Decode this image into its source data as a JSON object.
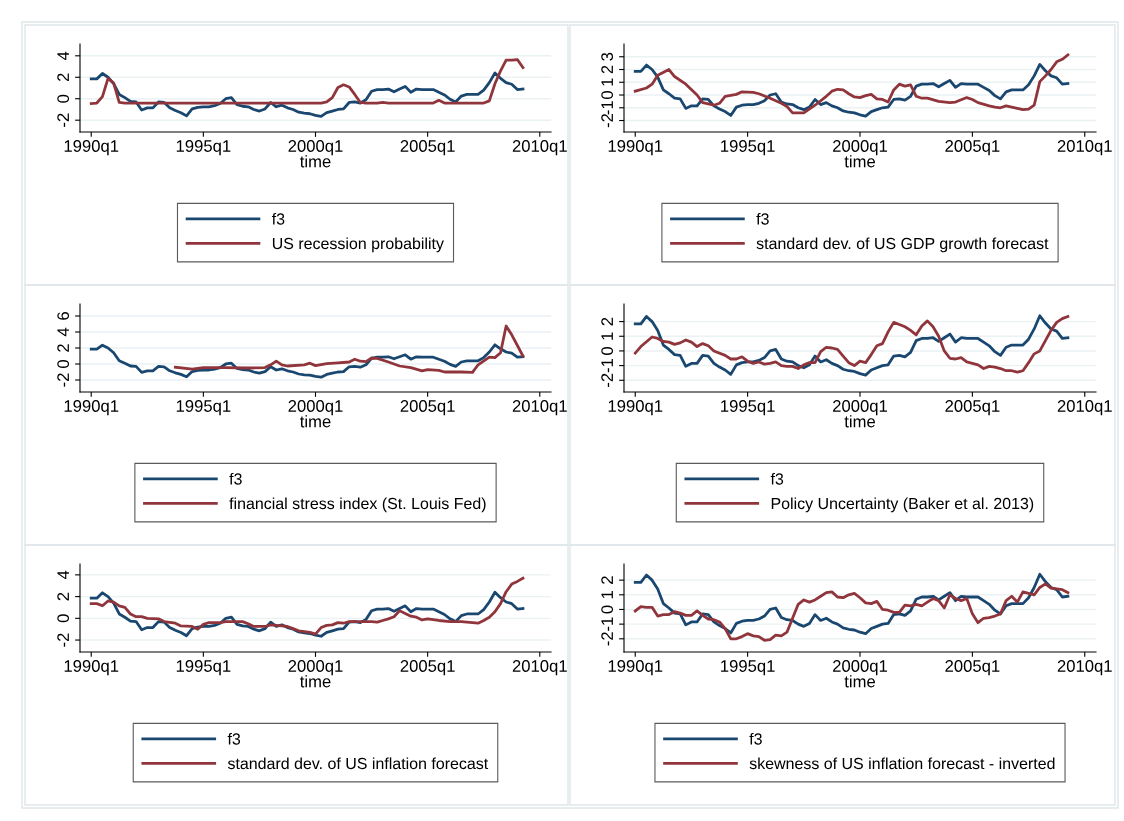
{
  "chart_data": [
    {
      "type": "line",
      "xlabel": "time",
      "xlim": [
        "1989-07",
        "2010-07"
      ],
      "ylim": [
        -3.1,
        5.1
      ],
      "xticks": [
        {
          "value": "1990-01",
          "label": "1990q1"
        },
        {
          "value": "1995-01",
          "label": "1995q1"
        },
        {
          "value": "2000-01",
          "label": "2000q1"
        },
        {
          "value": "2005-01",
          "label": "2005q1"
        },
        {
          "value": "2010-01",
          "label": "2010q1"
        }
      ],
      "yticks": [
        -2,
        0,
        2,
        4
      ],
      "grid": "y",
      "legend": "bottom",
      "line_style": "solid",
      "marker": "none",
      "x": [
        "1990-01",
        "1990-04",
        "1990-07",
        "1990-10",
        "1991-01",
        "1991-04",
        "1991-07",
        "1991-10",
        "1992-01",
        "1992-04",
        "1992-07",
        "1992-10",
        "1993-01",
        "1993-04",
        "1993-07",
        "1993-10",
        "1994-01",
        "1994-04",
        "1994-07",
        "1994-10",
        "1995-01",
        "1995-04",
        "1995-07",
        "1995-10",
        "1996-01",
        "1996-04",
        "1996-07",
        "1996-10",
        "1997-01",
        "1997-04",
        "1997-07",
        "1997-10",
        "1998-01",
        "1998-04",
        "1998-07",
        "1998-10",
        "1999-01",
        "1999-04",
        "1999-07",
        "1999-10",
        "2000-01",
        "2000-04",
        "2000-07",
        "2000-10",
        "2001-01",
        "2001-04",
        "2001-07",
        "2001-10",
        "2002-01",
        "2002-04",
        "2002-07",
        "2002-10",
        "2003-01",
        "2003-04",
        "2003-07",
        "2003-10",
        "2004-01",
        "2004-04",
        "2004-07",
        "2004-10",
        "2005-01",
        "2005-04",
        "2005-07",
        "2005-10",
        "2006-01",
        "2006-04",
        "2006-07",
        "2006-10",
        "2007-01",
        "2007-04",
        "2007-07",
        "2007-10",
        "2008-01",
        "2008-04",
        "2008-07",
        "2008-10",
        "2009-01",
        "2009-04"
      ],
      "series": [
        {
          "name": "f3",
          "color": "#1a476f",
          "values": [
            1.85,
            1.85,
            2.35,
            2.0,
            1.4,
            0.4,
            0.1,
            -0.25,
            -0.3,
            -1.05,
            -0.85,
            -0.85,
            -0.3,
            -0.35,
            -0.85,
            -1.1,
            -1.3,
            -1.6,
            -0.95,
            -0.8,
            -0.75,
            -0.75,
            -0.65,
            -0.45,
            0.0,
            0.1,
            -0.55,
            -0.7,
            -0.75,
            -1.0,
            -1.15,
            -0.95,
            -0.35,
            -0.75,
            -0.6,
            -0.85,
            -1.0,
            -1.25,
            -1.35,
            -1.4,
            -1.55,
            -1.65,
            -1.3,
            -1.15,
            -1.0,
            -0.95,
            -0.35,
            -0.3,
            -0.4,
            -0.1,
            0.7,
            0.85,
            0.85,
            0.9,
            0.65,
            0.9,
            1.15,
            0.6,
            0.9,
            0.85,
            0.85,
            0.85,
            0.6,
            0.35,
            -0.05,
            -0.3,
            0.25,
            0.4,
            0.4,
            0.4,
            0.8,
            1.5,
            2.4,
            1.9,
            1.5,
            1.35,
            0.85,
            0.9
          ]
        },
        {
          "name": "US recession probability",
          "color": "#90353b",
          "x": [
            "1990-01",
            "1990-04",
            "1990-07",
            "1990-10",
            "1991-01",
            "1991-04",
            "1991-07",
            "2000-04",
            "2000-07",
            "2000-10",
            "2001-01",
            "2001-04",
            "2001-07",
            "2001-10",
            "2002-01",
            "2002-04",
            "2002-10",
            "2003-01",
            "2003-04",
            "2005-04",
            "2005-07",
            "2005-10",
            "2007-07",
            "2007-10",
            "2008-01",
            "2008-04",
            "2008-07",
            "2008-10",
            "2009-01",
            "2009-04"
          ],
          "values": [
            -0.45,
            -0.4,
            0.2,
            1.9,
            1.45,
            -0.35,
            -0.4,
            -0.4,
            -0.3,
            0.1,
            1.05,
            1.3,
            1.1,
            0.4,
            -0.35,
            -0.4,
            -0.4,
            -0.35,
            -0.4,
            -0.4,
            -0.15,
            -0.4,
            -0.4,
            -0.2,
            1.4,
            2.6,
            3.6,
            3.6,
            3.65,
            2.9
          ]
        }
      ]
    },
    {
      "type": "line",
      "xlabel": "time",
      "xlim": [
        "1989-07",
        "2010-07"
      ],
      "ylim": [
        -2.9,
        4.0
      ],
      "xticks": [
        {
          "value": "1990-01",
          "label": "1990q1"
        },
        {
          "value": "1995-01",
          "label": "1995q1"
        },
        {
          "value": "2000-01",
          "label": "2000q1"
        },
        {
          "value": "2005-01",
          "label": "2005q1"
        },
        {
          "value": "2010-01",
          "label": "2010q1"
        }
      ],
      "yticks": [
        -2,
        -1,
        0,
        1,
        2,
        3
      ],
      "grid": "y",
      "legend": "bottom",
      "line_style": "solid",
      "marker": "none",
      "x": [
        "1990-01",
        "1990-04",
        "1990-07",
        "1990-10",
        "1991-01",
        "1991-04",
        "1991-07",
        "1991-10",
        "1992-01",
        "1992-04",
        "1992-07",
        "1992-10",
        "1993-01",
        "1993-04",
        "1993-07",
        "1993-10",
        "1994-01",
        "1994-04",
        "1994-07",
        "1994-10",
        "1995-01",
        "1995-04",
        "1995-07",
        "1995-10",
        "1996-01",
        "1996-04",
        "1996-07",
        "1996-10",
        "1997-01",
        "1997-04",
        "1997-07",
        "1997-10",
        "1998-01",
        "1998-04",
        "1998-07",
        "1998-10",
        "1999-01",
        "1999-04",
        "1999-07",
        "1999-10",
        "2000-01",
        "2000-04",
        "2000-07",
        "2000-10",
        "2001-01",
        "2001-04",
        "2001-07",
        "2001-10",
        "2002-01",
        "2002-04",
        "2002-07",
        "2002-10",
        "2003-01",
        "2003-04",
        "2003-07",
        "2003-10",
        "2004-01",
        "2004-04",
        "2004-07",
        "2004-10",
        "2005-01",
        "2005-04",
        "2005-07",
        "2005-10",
        "2006-01",
        "2006-04",
        "2006-07",
        "2006-10",
        "2007-01",
        "2007-04",
        "2007-07",
        "2007-10",
        "2008-01",
        "2008-04",
        "2008-07",
        "2008-10",
        "2009-01",
        "2009-04"
      ],
      "series": [
        {
          "name": "f3",
          "color": "#1a476f",
          "values": [
            1.85,
            1.85,
            2.35,
            2.0,
            1.4,
            0.4,
            0.1,
            -0.25,
            -0.3,
            -1.05,
            -0.85,
            -0.85,
            -0.3,
            -0.35,
            -0.85,
            -1.1,
            -1.3,
            -1.6,
            -0.95,
            -0.8,
            -0.75,
            -0.75,
            -0.65,
            -0.45,
            0.0,
            0.1,
            -0.55,
            -0.7,
            -0.75,
            -1.0,
            -1.15,
            -0.95,
            -0.35,
            -0.75,
            -0.6,
            -0.85,
            -1.0,
            -1.25,
            -1.35,
            -1.4,
            -1.55,
            -1.65,
            -1.3,
            -1.15,
            -1.0,
            -0.95,
            -0.35,
            -0.3,
            -0.4,
            -0.1,
            0.7,
            0.85,
            0.85,
            0.9,
            0.65,
            0.9,
            1.15,
            0.6,
            0.9,
            0.85,
            0.85,
            0.85,
            0.6,
            0.35,
            -0.05,
            -0.3,
            0.25,
            0.4,
            0.4,
            0.4,
            0.8,
            1.5,
            2.4,
            1.9,
            1.5,
            1.35,
            0.85,
            0.9
          ]
        },
        {
          "name": "standard dev. of US GDP growth forecast",
          "color": "#90353b",
          "x": [
            "1990-01",
            "1990-07",
            "1990-10",
            "1991-01",
            "1991-07",
            "1991-10",
            "1992-04",
            "1992-10",
            "1993-01",
            "1993-07",
            "1993-10",
            "1994-01",
            "1994-07",
            "1994-10",
            "1995-04",
            "1995-07",
            "1996-01",
            "1996-07",
            "1996-10",
            "1997-01",
            "1997-07",
            "1998-01",
            "1998-07",
            "1998-10",
            "1999-01",
            "1999-04",
            "1999-07",
            "1999-10",
            "2000-01",
            "2000-04",
            "2000-07",
            "2000-10",
            "2001-01",
            "2001-04",
            "2001-07",
            "2001-10",
            "2002-01",
            "2002-04",
            "2002-07",
            "2002-10",
            "2003-01",
            "2003-07",
            "2004-01",
            "2004-04",
            "2004-10",
            "2005-01",
            "2005-04",
            "2005-10",
            "2006-01",
            "2006-04",
            "2006-07",
            "2006-10",
            "2007-01",
            "2007-04",
            "2007-07",
            "2007-10",
            "2008-01",
            "2008-04",
            "2008-07",
            "2008-10",
            "2009-01",
            "2009-04"
          ],
          "values": [
            0.3,
            0.55,
            0.85,
            1.55,
            2.0,
            1.45,
            0.85,
            0.0,
            -0.6,
            -0.8,
            -0.65,
            -0.1,
            0.05,
            0.25,
            0.2,
            0.1,
            -0.25,
            -0.65,
            -0.9,
            -1.4,
            -1.4,
            -0.8,
            -0.1,
            0.3,
            0.45,
            0.4,
            0.1,
            -0.15,
            -0.2,
            -0.05,
            0.05,
            -0.3,
            -0.35,
            -0.55,
            0.4,
            0.85,
            0.7,
            0.8,
            -0.1,
            -0.25,
            -0.25,
            -0.5,
            -0.6,
            -0.55,
            -0.2,
            -0.35,
            -0.6,
            -0.85,
            -0.95,
            -1.0,
            -0.85,
            -0.95,
            -1.05,
            -1.15,
            -1.1,
            -0.8,
            1.05,
            1.5,
            2.0,
            2.6,
            2.8,
            3.15
          ]
        }
      ]
    },
    {
      "type": "line",
      "xlabel": "time",
      "xlim": [
        "1989-07",
        "2010-07"
      ],
      "ylim": [
        -3.5,
        7.5
      ],
      "xticks": [
        {
          "value": "1990-01",
          "label": "1990q1"
        },
        {
          "value": "1995-01",
          "label": "1995q1"
        },
        {
          "value": "2000-01",
          "label": "2000q1"
        },
        {
          "value": "2005-01",
          "label": "2005q1"
        },
        {
          "value": "2010-01",
          "label": "2010q1"
        }
      ],
      "yticks": [
        -2,
        0,
        2,
        4,
        6
      ],
      "grid": "y",
      "legend": "bottom",
      "line_style": "solid",
      "marker": "none",
      "x": [
        "1990-01",
        "1990-04",
        "1990-07",
        "1990-10",
        "1991-01",
        "1991-04",
        "1991-07",
        "1991-10",
        "1992-01",
        "1992-04",
        "1992-07",
        "1992-10",
        "1993-01",
        "1993-04",
        "1993-07",
        "1993-10",
        "1994-01",
        "1994-04",
        "1994-07",
        "1994-10",
        "1995-01",
        "1995-04",
        "1995-07",
        "1995-10",
        "1996-01",
        "1996-04",
        "1996-07",
        "1996-10",
        "1997-01",
        "1997-04",
        "1997-07",
        "1997-10",
        "1998-01",
        "1998-04",
        "1998-07",
        "1998-10",
        "1999-01",
        "1999-04",
        "1999-07",
        "1999-10",
        "2000-01",
        "2000-04",
        "2000-07",
        "2000-10",
        "2001-01",
        "2001-04",
        "2001-07",
        "2001-10",
        "2002-01",
        "2002-04",
        "2002-07",
        "2002-10",
        "2003-01",
        "2003-04",
        "2003-07",
        "2003-10",
        "2004-01",
        "2004-04",
        "2004-07",
        "2004-10",
        "2005-01",
        "2005-04",
        "2005-07",
        "2005-10",
        "2006-01",
        "2006-04",
        "2006-07",
        "2006-10",
        "2007-01",
        "2007-04",
        "2007-07",
        "2007-10",
        "2008-01",
        "2008-04",
        "2008-07",
        "2008-10",
        "2009-01",
        "2009-04"
      ],
      "series": [
        {
          "name": "f3",
          "color": "#1a476f",
          "values": [
            1.85,
            1.85,
            2.35,
            2.0,
            1.4,
            0.4,
            0.1,
            -0.25,
            -0.3,
            -1.05,
            -0.85,
            -0.85,
            -0.3,
            -0.35,
            -0.85,
            -1.1,
            -1.3,
            -1.6,
            -0.95,
            -0.8,
            -0.75,
            -0.75,
            -0.65,
            -0.45,
            0.0,
            0.1,
            -0.55,
            -0.7,
            -0.75,
            -1.0,
            -1.15,
            -0.95,
            -0.35,
            -0.75,
            -0.6,
            -0.85,
            -1.0,
            -1.25,
            -1.35,
            -1.4,
            -1.55,
            -1.65,
            -1.3,
            -1.15,
            -1.0,
            -0.95,
            -0.35,
            -0.3,
            -0.4,
            -0.1,
            0.7,
            0.85,
            0.85,
            0.9,
            0.65,
            0.9,
            1.15,
            0.6,
            0.9,
            0.85,
            0.85,
            0.85,
            0.6,
            0.35,
            -0.05,
            -0.3,
            0.25,
            0.4,
            0.4,
            0.4,
            0.8,
            1.5,
            2.4,
            1.9,
            1.5,
            1.35,
            0.85,
            0.9
          ]
        },
        {
          "name": "financial stress index (St. Louis Fed)",
          "color": "#90353b",
          "x": [
            "1993-10",
            "1994-07",
            "1995-01",
            "1996-01",
            "1997-01",
            "1997-10",
            "1998-01",
            "1998-04",
            "1998-07",
            "1998-10",
            "1999-07",
            "1999-10",
            "2000-01",
            "2000-07",
            "2001-01",
            "2001-07",
            "2001-10",
            "2002-01",
            "2002-04",
            "2002-07",
            "2002-10",
            "2003-04",
            "2003-10",
            "2004-04",
            "2004-10",
            "2005-01",
            "2005-07",
            "2005-10",
            "2006-07",
            "2007-01",
            "2007-04",
            "2007-10",
            "2008-01",
            "2008-04",
            "2008-07",
            "2008-10",
            "2009-04"
          ],
          "values": [
            -0.4,
            -0.65,
            -0.45,
            -0.45,
            -0.5,
            -0.45,
            -0.1,
            0.35,
            -0.1,
            -0.25,
            -0.1,
            0.1,
            -0.2,
            0.05,
            0.15,
            0.25,
            0.6,
            0.35,
            0.3,
            0.75,
            0.7,
            0.25,
            -0.25,
            -0.45,
            -0.85,
            -0.7,
            -0.8,
            -1.0,
            -1.0,
            -1.05,
            -0.1,
            0.85,
            0.8,
            1.4,
            4.75,
            3.65,
            1.0
          ]
        }
      ]
    },
    {
      "type": "line",
      "xlabel": "time",
      "xlim": [
        "1989-07",
        "2010-07"
      ],
      "ylim": [
        -2.8,
        3.2
      ],
      "xticks": [
        {
          "value": "1990-01",
          "label": "1990q1"
        },
        {
          "value": "1995-01",
          "label": "1995q1"
        },
        {
          "value": "2000-01",
          "label": "2000q1"
        },
        {
          "value": "2005-01",
          "label": "2005q1"
        },
        {
          "value": "2010-01",
          "label": "2010q1"
        }
      ],
      "yticks": [
        -2,
        -1,
        0,
        1,
        2
      ],
      "grid": "y",
      "legend": "bottom",
      "line_style": "solid",
      "marker": "none",
      "x": [
        "1990-01",
        "1990-04",
        "1990-07",
        "1990-10",
        "1991-01",
        "1991-04",
        "1991-07",
        "1991-10",
        "1992-01",
        "1992-04",
        "1992-07",
        "1992-10",
        "1993-01",
        "1993-04",
        "1993-07",
        "1993-10",
        "1994-01",
        "1994-04",
        "1994-07",
        "1994-10",
        "1995-01",
        "1995-04",
        "1995-07",
        "1995-10",
        "1996-01",
        "1996-04",
        "1996-07",
        "1996-10",
        "1997-01",
        "1997-04",
        "1997-07",
        "1997-10",
        "1998-01",
        "1998-04",
        "1998-07",
        "1998-10",
        "1999-01",
        "1999-04",
        "1999-07",
        "1999-10",
        "2000-01",
        "2000-04",
        "2000-07",
        "2000-10",
        "2001-01",
        "2001-04",
        "2001-07",
        "2001-10",
        "2002-01",
        "2002-04",
        "2002-07",
        "2002-10",
        "2003-01",
        "2003-04",
        "2003-07",
        "2003-10",
        "2004-01",
        "2004-04",
        "2004-07",
        "2004-10",
        "2005-01",
        "2005-04",
        "2005-07",
        "2005-10",
        "2006-01",
        "2006-04",
        "2006-07",
        "2006-10",
        "2007-01",
        "2007-04",
        "2007-07",
        "2007-10",
        "2008-01",
        "2008-04",
        "2008-07",
        "2008-10",
        "2009-01",
        "2009-04"
      ],
      "series": [
        {
          "name": "f3",
          "color": "#1a476f",
          "values": [
            1.85,
            1.85,
            2.35,
            2.0,
            1.4,
            0.4,
            0.1,
            -0.25,
            -0.3,
            -1.05,
            -0.85,
            -0.85,
            -0.3,
            -0.35,
            -0.85,
            -1.1,
            -1.3,
            -1.6,
            -0.95,
            -0.8,
            -0.75,
            -0.75,
            -0.65,
            -0.45,
            0.0,
            0.1,
            -0.55,
            -0.7,
            -0.75,
            -1.0,
            -1.15,
            -0.95,
            -0.35,
            -0.75,
            -0.6,
            -0.85,
            -1.0,
            -1.25,
            -1.35,
            -1.4,
            -1.55,
            -1.65,
            -1.3,
            -1.15,
            -1.0,
            -0.95,
            -0.35,
            -0.3,
            -0.4,
            -0.1,
            0.7,
            0.85,
            0.85,
            0.9,
            0.65,
            0.9,
            1.15,
            0.6,
            0.9,
            0.85,
            0.85,
            0.85,
            0.6,
            0.35,
            -0.05,
            -0.3,
            0.25,
            0.4,
            0.4,
            0.4,
            0.8,
            1.5,
            2.4,
            1.9,
            1.5,
            1.35,
            0.85,
            0.9
          ]
        },
        {
          "name": "Policy Uncertainty (Baker et al. 2013)",
          "color": "#90353b",
          "x": [
            "1990-01",
            "1990-04",
            "1990-10",
            "1991-01",
            "1991-04",
            "1991-07",
            "1991-10",
            "1992-01",
            "1992-04",
            "1992-07",
            "1992-10",
            "1993-01",
            "1993-04",
            "1993-07",
            "1994-01",
            "1994-04",
            "1994-07",
            "1994-10",
            "1995-01",
            "1995-04",
            "1995-07",
            "1995-10",
            "1996-01",
            "1996-04",
            "1996-07",
            "1996-10",
            "1997-01",
            "1997-04",
            "1997-07",
            "1997-10",
            "1998-01",
            "1998-04",
            "1998-07",
            "1998-10",
            "1999-01",
            "1999-04",
            "1999-07",
            "1999-10",
            "2000-01",
            "2000-04",
            "2000-07",
            "2000-10",
            "2001-01",
            "2001-04",
            "2001-07",
            "2001-10",
            "2002-01",
            "2002-04",
            "2002-07",
            "2002-10",
            "2003-01",
            "2003-04",
            "2003-07",
            "2003-10",
            "2004-01",
            "2004-04",
            "2004-07",
            "2004-10",
            "2005-01",
            "2005-04",
            "2005-07",
            "2005-10",
            "2006-01",
            "2006-04",
            "2006-07",
            "2006-10",
            "2007-01",
            "2007-04",
            "2007-07",
            "2007-10",
            "2008-01",
            "2008-04",
            "2008-07",
            "2008-10",
            "2009-01",
            "2009-04"
          ],
          "values": [
            -0.15,
            0.3,
            0.95,
            0.85,
            0.65,
            0.6,
            0.45,
            0.55,
            0.75,
            0.6,
            0.3,
            0.5,
            0.35,
            0.0,
            -0.3,
            -0.55,
            -0.55,
            -0.4,
            -0.7,
            -0.85,
            -0.75,
            -0.9,
            -0.85,
            -0.75,
            -1.0,
            -1.05,
            -1.05,
            -1.2,
            -0.95,
            -0.8,
            -0.8,
            -0.05,
            0.25,
            0.2,
            0.1,
            -0.35,
            -0.8,
            -1.0,
            -0.7,
            -0.8,
            -0.25,
            0.35,
            0.5,
            1.3,
            1.95,
            1.8,
            1.65,
            1.4,
            1.1,
            1.7,
            2.05,
            1.65,
            1.0,
            0.0,
            -0.5,
            -0.55,
            -0.45,
            -0.75,
            -0.85,
            -0.95,
            -1.2,
            -1.05,
            -1.1,
            -1.2,
            -1.35,
            -1.35,
            -1.45,
            -1.35,
            -0.8,
            -0.2,
            0.0,
            0.7,
            1.4,
            1.95,
            2.2,
            2.35
          ]
        }
      ]
    },
    {
      "type": "line",
      "xlabel": "time",
      "xlim": [
        "1989-07",
        "2010-07"
      ],
      "ylim": [
        -3.1,
        5.0
      ],
      "xticks": [
        {
          "value": "1990-01",
          "label": "1990q1"
        },
        {
          "value": "1995-01",
          "label": "1995q1"
        },
        {
          "value": "2000-01",
          "label": "2000q1"
        },
        {
          "value": "2005-01",
          "label": "2005q1"
        },
        {
          "value": "2010-01",
          "label": "2010q1"
        }
      ],
      "yticks": [
        -2,
        0,
        2,
        4
      ],
      "grid": "y",
      "legend": "bottom",
      "line_style": "solid",
      "marker": "none",
      "x": [
        "1990-01",
        "1990-04",
        "1990-07",
        "1990-10",
        "1991-01",
        "1991-04",
        "1991-07",
        "1991-10",
        "1992-01",
        "1992-04",
        "1992-07",
        "1992-10",
        "1993-01",
        "1993-04",
        "1993-07",
        "1993-10",
        "1994-01",
        "1994-04",
        "1994-07",
        "1994-10",
        "1995-01",
        "1995-04",
        "1995-07",
        "1995-10",
        "1996-01",
        "1996-04",
        "1996-07",
        "1996-10",
        "1997-01",
        "1997-04",
        "1997-07",
        "1997-10",
        "1998-01",
        "1998-04",
        "1998-07",
        "1998-10",
        "1999-01",
        "1999-04",
        "1999-07",
        "1999-10",
        "2000-01",
        "2000-04",
        "2000-07",
        "2000-10",
        "2001-01",
        "2001-04",
        "2001-07",
        "2001-10",
        "2002-01",
        "2002-04",
        "2002-07",
        "2002-10",
        "2003-01",
        "2003-04",
        "2003-07",
        "2003-10",
        "2004-01",
        "2004-04",
        "2004-07",
        "2004-10",
        "2005-01",
        "2005-04",
        "2005-07",
        "2005-10",
        "2006-01",
        "2006-04",
        "2006-07",
        "2006-10",
        "2007-01",
        "2007-04",
        "2007-07",
        "2007-10",
        "2008-01",
        "2008-04",
        "2008-07",
        "2008-10",
        "2009-01",
        "2009-04"
      ],
      "series": [
        {
          "name": "f3",
          "color": "#1a476f",
          "values": [
            1.85,
            1.85,
            2.35,
            2.0,
            1.4,
            0.4,
            0.1,
            -0.25,
            -0.3,
            -1.05,
            -0.85,
            -0.85,
            -0.3,
            -0.35,
            -0.85,
            -1.1,
            -1.3,
            -1.6,
            -0.95,
            -0.8,
            -0.75,
            -0.75,
            -0.65,
            -0.45,
            0.0,
            0.1,
            -0.55,
            -0.7,
            -0.75,
            -1.0,
            -1.15,
            -0.95,
            -0.35,
            -0.75,
            -0.6,
            -0.85,
            -1.0,
            -1.25,
            -1.35,
            -1.4,
            -1.55,
            -1.65,
            -1.3,
            -1.15,
            -1.0,
            -0.95,
            -0.35,
            -0.3,
            -0.4,
            -0.1,
            0.7,
            0.85,
            0.85,
            0.9,
            0.65,
            0.9,
            1.15,
            0.6,
            0.9,
            0.85,
            0.85,
            0.85,
            0.6,
            0.35,
            -0.05,
            -0.3,
            0.25,
            0.4,
            0.4,
            0.4,
            0.8,
            1.5,
            2.4,
            1.9,
            1.5,
            1.35,
            0.85,
            0.9
          ]
        },
        {
          "name": "standard dev. of US inflation forecast",
          "color": "#90353b",
          "x": [
            "1990-01",
            "1990-04",
            "1990-07",
            "1990-10",
            "1991-01",
            "1991-04",
            "1991-07",
            "1991-10",
            "1992-01",
            "1992-04",
            "1992-07",
            "1993-01",
            "1993-04",
            "1993-10",
            "1994-01",
            "1994-07",
            "1994-10",
            "1995-01",
            "1995-04",
            "1995-10",
            "1996-01",
            "1996-07",
            "1996-10",
            "1997-01",
            "1997-04",
            "1997-10",
            "1998-01",
            "1998-07",
            "1998-10",
            "1999-01",
            "1999-04",
            "1999-10",
            "2000-01",
            "2000-04",
            "2000-07",
            "2000-10",
            "2001-01",
            "2001-04",
            "2001-07",
            "2002-01",
            "2002-07",
            "2002-10",
            "2003-01",
            "2003-04",
            "2003-07",
            "2003-10",
            "2004-01",
            "2004-04",
            "2004-07",
            "2004-10",
            "2005-01",
            "2005-07",
            "2006-01",
            "2006-07",
            "2007-01",
            "2007-04",
            "2007-07",
            "2007-10",
            "2008-01",
            "2008-04",
            "2008-07",
            "2008-10",
            "2009-01",
            "2009-04"
          ],
          "values": [
            1.35,
            1.35,
            1.15,
            1.6,
            1.5,
            1.15,
            1.0,
            0.4,
            0.15,
            0.15,
            0.0,
            -0.05,
            -0.3,
            -0.45,
            -0.7,
            -0.75,
            -1.0,
            -0.55,
            -0.4,
            -0.4,
            -0.3,
            -0.3,
            -0.3,
            -0.5,
            -0.75,
            -0.75,
            -0.6,
            -0.7,
            -0.75,
            -0.95,
            -1.15,
            -1.3,
            -1.45,
            -0.85,
            -0.65,
            -0.6,
            -0.4,
            -0.45,
            -0.3,
            -0.3,
            -0.3,
            -0.35,
            -0.2,
            -0.05,
            0.15,
            0.7,
            0.45,
            0.2,
            0.1,
            -0.15,
            -0.05,
            -0.2,
            -0.3,
            -0.3,
            -0.4,
            -0.45,
            -0.2,
            0.1,
            0.6,
            1.35,
            2.45,
            3.15,
            3.4,
            3.7
          ]
        }
      ]
    },
    {
      "type": "line",
      "xlabel": "time",
      "xlim": [
        "1989-07",
        "2010-07"
      ],
      "ylim": [
        -2.9,
        3.1
      ],
      "xticks": [
        {
          "value": "1990-01",
          "label": "1990q1"
        },
        {
          "value": "1995-01",
          "label": "1995q1"
        },
        {
          "value": "2000-01",
          "label": "2000q1"
        },
        {
          "value": "2005-01",
          "label": "2005q1"
        },
        {
          "value": "2010-01",
          "label": "2010q1"
        }
      ],
      "yticks": [
        -2,
        -1,
        0,
        1,
        2
      ],
      "grid": "y",
      "legend": "bottom",
      "line_style": "solid",
      "marker": "none",
      "x": [
        "1990-01",
        "1990-04",
        "1990-07",
        "1990-10",
        "1991-01",
        "1991-04",
        "1991-07",
        "1991-10",
        "1992-01",
        "1992-04",
        "1992-07",
        "1992-10",
        "1993-01",
        "1993-04",
        "1993-07",
        "1993-10",
        "1994-01",
        "1994-04",
        "1994-07",
        "1994-10",
        "1995-01",
        "1995-04",
        "1995-07",
        "1995-10",
        "1996-01",
        "1996-04",
        "1996-07",
        "1996-10",
        "1997-01",
        "1997-04",
        "1997-07",
        "1997-10",
        "1998-01",
        "1998-04",
        "1998-07",
        "1998-10",
        "1999-01",
        "1999-04",
        "1999-07",
        "1999-10",
        "2000-01",
        "2000-04",
        "2000-07",
        "2000-10",
        "2001-01",
        "2001-04",
        "2001-07",
        "2001-10",
        "2002-01",
        "2002-04",
        "2002-07",
        "2002-10",
        "2003-01",
        "2003-04",
        "2003-07",
        "2003-10",
        "2004-01",
        "2004-04",
        "2004-07",
        "2004-10",
        "2005-01",
        "2005-04",
        "2005-07",
        "2005-10",
        "2006-01",
        "2006-04",
        "2006-07",
        "2006-10",
        "2007-01",
        "2007-04",
        "2007-07",
        "2007-10",
        "2008-01",
        "2008-04",
        "2008-07",
        "2008-10",
        "2009-01",
        "2009-04"
      ],
      "series": [
        {
          "name": "f3",
          "color": "#1a476f",
          "values": [
            1.85,
            1.85,
            2.35,
            2.0,
            1.4,
            0.4,
            0.1,
            -0.25,
            -0.3,
            -1.05,
            -0.85,
            -0.85,
            -0.3,
            -0.35,
            -0.85,
            -1.1,
            -1.3,
            -1.6,
            -0.95,
            -0.8,
            -0.75,
            -0.75,
            -0.65,
            -0.45,
            0.0,
            0.1,
            -0.55,
            -0.7,
            -0.75,
            -1.0,
            -1.15,
            -0.95,
            -0.35,
            -0.75,
            -0.6,
            -0.85,
            -1.0,
            -1.25,
            -1.35,
            -1.4,
            -1.55,
            -1.65,
            -1.3,
            -1.15,
            -1.0,
            -0.95,
            -0.35,
            -0.3,
            -0.4,
            -0.1,
            0.7,
            0.85,
            0.85,
            0.9,
            0.65,
            0.9,
            1.15,
            0.6,
            0.9,
            0.85,
            0.85,
            0.85,
            0.6,
            0.35,
            -0.05,
            -0.3,
            0.25,
            0.4,
            0.4,
            0.4,
            0.8,
            1.5,
            2.4,
            1.9,
            1.5,
            1.35,
            0.85,
            0.9
          ]
        },
        {
          "name": "skewness of US inflation forecast - inverted",
          "color": "#90353b",
          "values": [
            -0.1,
            0.2,
            0.15,
            0.15,
            -0.45,
            -0.35,
            -0.35,
            -0.15,
            -0.25,
            -0.4,
            -0.4,
            -0.1,
            -0.4,
            -0.65,
            -0.7,
            -0.85,
            -1.3,
            -2.0,
            -2.0,
            -1.85,
            -1.65,
            -1.8,
            -1.85,
            -2.1,
            -2.05,
            -1.75,
            -1.8,
            -1.55,
            -0.6,
            0.35,
            0.65,
            0.5,
            0.65,
            0.9,
            1.15,
            1.2,
            0.85,
            0.8,
            1.0,
            1.1,
            0.8,
            0.45,
            0.4,
            0.55,
            0.0,
            -0.05,
            -0.2,
            -0.2,
            0.3,
            0.25,
            0.35,
            0.25,
            0.5,
            0.75,
            0.6,
            0.1,
            1.0,
            0.75,
            0.6,
            0.75,
            -0.3,
            -0.9,
            -0.6,
            -0.55,
            -0.45,
            -0.3,
            0.6,
            0.9,
            0.5,
            1.2,
            1.1,
            1.0,
            1.5,
            1.75,
            1.45,
            1.4,
            1.35,
            1.15
          ]
        }
      ]
    }
  ]
}
